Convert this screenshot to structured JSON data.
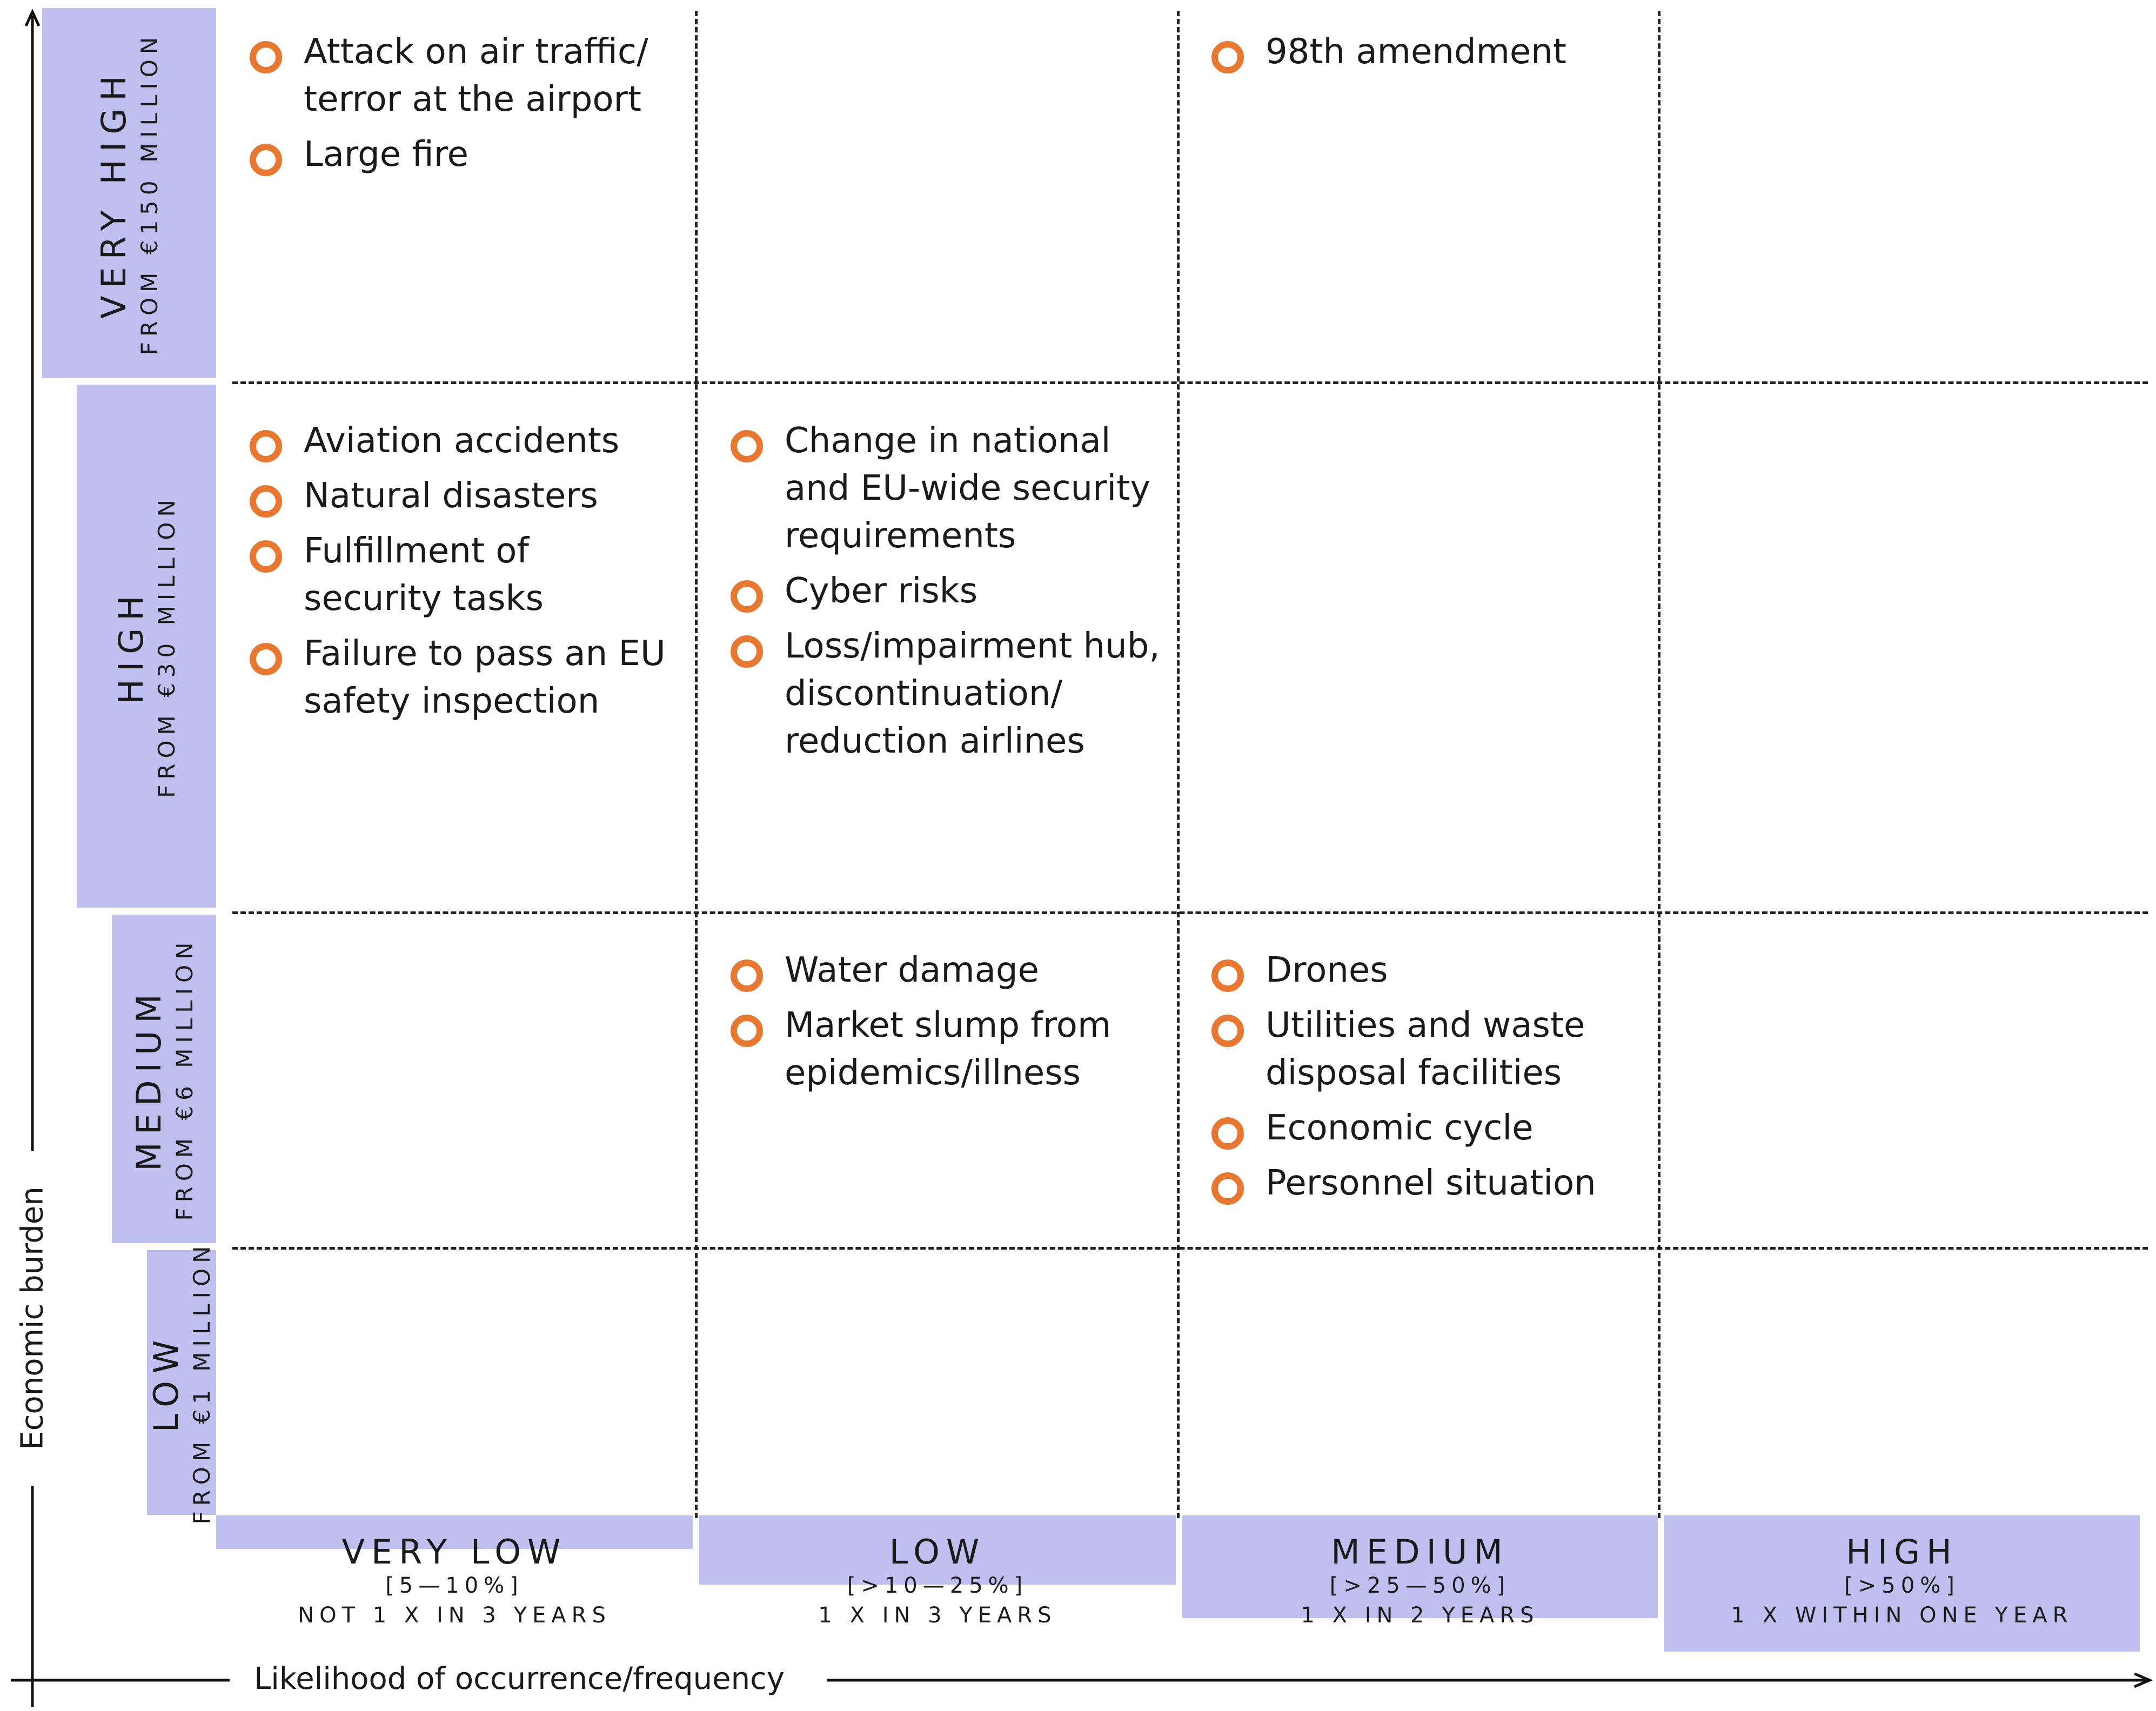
{
  "axes": {
    "y_title": "Economic burden",
    "x_title": "Likelihood of occurrence/frequency"
  },
  "y_levels": [
    {
      "name": "VERY HIGH",
      "range": "FROM €150 MILLION"
    },
    {
      "name": "HIGH",
      "range": "FROM €30 MILLION"
    },
    {
      "name": "MEDIUM",
      "range": "FROM €6 MILLION"
    },
    {
      "name": "LOW",
      "range": "FROM €1 MILLION"
    }
  ],
  "x_levels": [
    {
      "name": "VERY LOW",
      "range": "[5—10%]",
      "frequency": "NOT 1 X IN 3 YEARS"
    },
    {
      "name": "LOW",
      "range": "[>10—25%]",
      "frequency": "1 X IN 3 YEARS"
    },
    {
      "name": "MEDIUM",
      "range": "[>25—50%]",
      "frequency": "1 X IN 2 YEARS"
    },
    {
      "name": "HIGH",
      "range": "[>50%]",
      "frequency": "1 X WITHIN ONE YEAR"
    }
  ],
  "cells": {
    "veryhigh_verylow": [
      "Attack on air traffic/ terror at the airport",
      "Large fire"
    ],
    "veryhigh_medium": [
      "98th amendment"
    ],
    "high_verylow": [
      "Aviation accidents",
      "Natural disasters",
      "Fulfillment of security tasks",
      "Failure to pass an EU safety inspection"
    ],
    "high_low": [
      "Change in national and EU-wide security requirements",
      "Cyber risks",
      "Loss/impairment hub, discontinuation/ reduction airlines"
    ],
    "medium_low": [
      "Water damage",
      "Market slump from epidemics/illness"
    ],
    "medium_medium": [
      "Drones",
      "Utilities and waste disposal facilities",
      "Economic cycle",
      "Personnel situation"
    ]
  },
  "colors": {
    "bar": "#bfc0f0",
    "bullet": "#e8782f",
    "grid": "#222222"
  }
}
